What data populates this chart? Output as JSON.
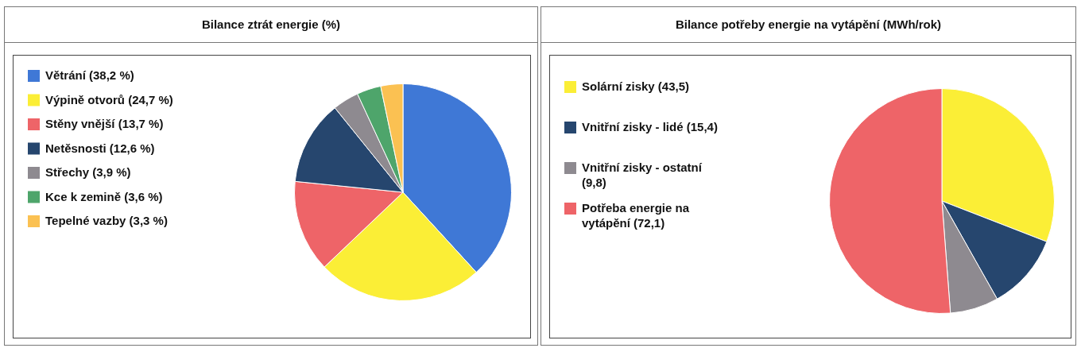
{
  "chart_data": [
    {
      "type": "pie",
      "title": "Bilance ztrát energie (%)",
      "legend": "left",
      "categories": [
        "Větrání (38,2 %)",
        "Výpině otvorů (24,7 %)",
        "Stěny vnější (13,7 %)",
        "Netěsnosti (12,6 %)",
        "Střechy (3,9 %)",
        "Kce k zemině (3,6 %)",
        "Tepelné vazby (3,3 %)"
      ],
      "values": [
        38.2,
        24.7,
        13.7,
        12.6,
        3.9,
        3.6,
        3.3
      ],
      "colors": [
        "#3f78d6",
        "#fbee36",
        "#ee6468",
        "#26466e",
        "#8e8a90",
        "#4ea56b",
        "#fbc152"
      ]
    },
    {
      "type": "pie",
      "title": "Bilance potřeby energie na vytápění (MWh/rok)",
      "legend": "left",
      "categories": [
        "Solární zisky (43,5)",
        "Vnitřní zisky - lidé (15,4)",
        "Vnitřní zisky - ostatní (9,8)",
        "Potřeba energie na vytápění (72,1)"
      ],
      "values": [
        43.5,
        15.4,
        9.8,
        72.1
      ],
      "colors": [
        "#fbee36",
        "#26466e",
        "#8e8a90",
        "#ee6468"
      ]
    }
  ]
}
